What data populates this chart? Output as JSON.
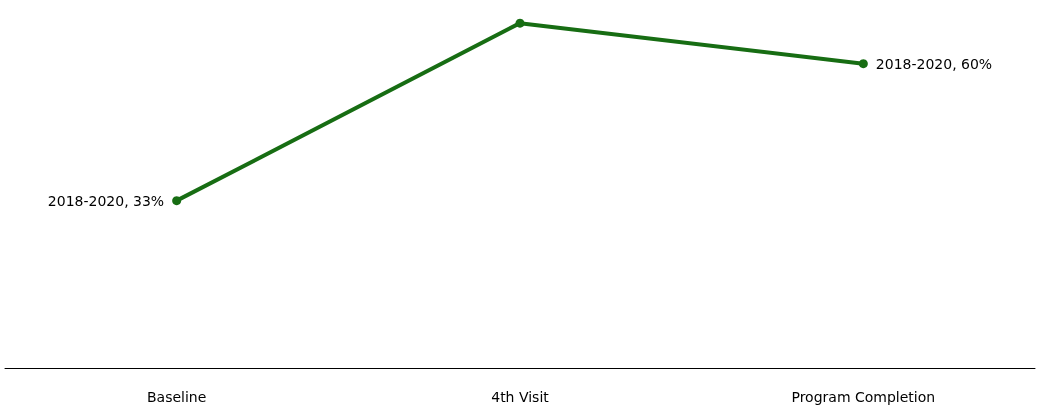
{
  "chart_data": {
    "type": "line",
    "categories": [
      "Baseline",
      "4th Visit",
      "Program Completion"
    ],
    "series": [
      {
        "color": "#176d13",
        "values": [
          33,
          68,
          60
        ],
        "value_labels": [
          "2018-2020, 33%",
          null,
          "2018-2020, 60%"
        ]
      }
    ],
    "marker": "circle",
    "tick_labels": "x"
  }
}
